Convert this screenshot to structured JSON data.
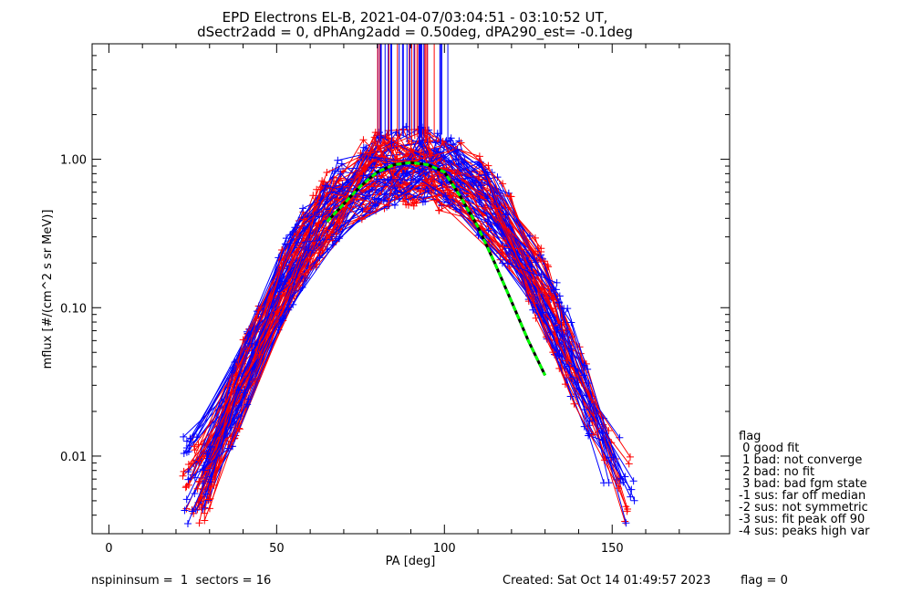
{
  "title_line1": "EPD Electrons EL-B, 2021-04-07/03:04:51 - 03:10:52 UT,",
  "title_line2": "dSectr2add = 0, dPhAng2add = 0.50deg, dPA290_est=  -0.1deg",
  "footer": {
    "left": "nspininsum =  1  sectors = 16",
    "created": "Created: Sat Oct 14 01:49:57 2023",
    "flag": "flag = 0"
  },
  "legend": {
    "title": "flag",
    "entries": [
      " 0 good fit",
      " 1 bad: not converge",
      " 2 bad: no fit",
      " 3 bad: bad fgm state",
      "-1 sus: far off median",
      "-2 sus: not symmetric",
      "-3 sus: fit peak off 90",
      "-4 sus: peaks high var"
    ]
  },
  "colors": {
    "series_a": "#ff0000",
    "series_b": "#0000ff",
    "fit": "#00ff00",
    "fit_dash": "#000000",
    "axis": "#000000"
  },
  "chart_data": {
    "type": "line",
    "xlabel": "PA [deg]",
    "ylabel": "mflux [#/(cm^2 s sr MeV)]",
    "xlim": [
      -5,
      185
    ],
    "ylim": [
      0.003,
      6
    ],
    "yscale": "log",
    "x_ticks": [
      0,
      50,
      100,
      150
    ],
    "x_tick_labels": [
      "0",
      "50",
      "100",
      "150"
    ],
    "y_ticks": [
      0.01,
      0.1,
      1.0
    ],
    "y_tick_labels": [
      "0.01",
      "0.10",
      "1.00"
    ],
    "grid": false,
    "legend_position": "right",
    "series_summary": [
      {
        "color": "red",
        "x": [
          27,
          40,
          55,
          65,
          80,
          90,
          100,
          115,
          130,
          140,
          152
        ],
        "y": [
          0.015,
          0.03,
          0.15,
          0.35,
          0.85,
          0.9,
          0.85,
          0.3,
          0.05,
          0.012,
          0.006
        ]
      },
      {
        "color": "blue",
        "x": [
          27,
          40,
          55,
          65,
          80,
          90,
          100,
          115,
          130,
          140,
          152
        ],
        "y": [
          0.012,
          0.025,
          0.12,
          0.3,
          0.75,
          0.85,
          0.75,
          0.25,
          0.04,
          0.014,
          0.008
        ]
      }
    ],
    "fit_curve": {
      "x": [
        65,
        70,
        75,
        80,
        85,
        90,
        95,
        100,
        105,
        110,
        115,
        120,
        125,
        130
      ],
      "y": [
        0.38,
        0.5,
        0.66,
        0.82,
        0.92,
        0.95,
        0.92,
        0.82,
        0.55,
        0.35,
        0.2,
        0.11,
        0.06,
        0.035
      ]
    }
  }
}
